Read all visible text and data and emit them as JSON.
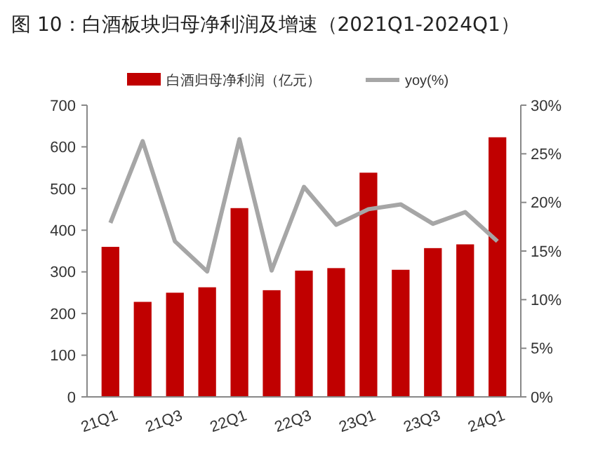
{
  "chart_data": {
    "type": "bar",
    "title": "图 10：白酒板块归母净利润及增速（2021Q1-2024Q1）",
    "categories": [
      "21Q1",
      null,
      "21Q3",
      null,
      "22Q1",
      null,
      "22Q3",
      null,
      "23Q1",
      null,
      "23Q3",
      null,
      "24Q1"
    ],
    "series": [
      {
        "name": "白酒归母净利润（亿元）",
        "color": "#c00000",
        "values": [
          360,
          228,
          250,
          263,
          453,
          256,
          303,
          309,
          538,
          305,
          357,
          366,
          623
        ]
      },
      {
        "name": "yoy(%)",
        "type": "line",
        "axis": "y2",
        "color": "#a6a6a6",
        "values": [
          17.9,
          26.3,
          16.0,
          12.9,
          26.5,
          13.0,
          21.6,
          17.7,
          19.3,
          19.8,
          17.8,
          19.0,
          16.0
        ]
      }
    ],
    "ylim": [
      0,
      700
    ],
    "yticks": [
      0,
      100,
      200,
      300,
      400,
      500,
      600,
      700
    ],
    "y2lim": [
      0,
      30
    ],
    "y2ticks": [
      {
        "value": 0,
        "label": "0%"
      },
      {
        "value": 5,
        "label": "5%"
      },
      {
        "value": 10,
        "label": "10%"
      },
      {
        "value": 15,
        "label": "15%"
      },
      {
        "value": 20,
        "label": "20%"
      },
      {
        "value": 25,
        "label": "25%"
      },
      {
        "value": 30,
        "label": "30%"
      }
    ],
    "legend": "top",
    "grid": false,
    "marker": "none",
    "line_style": "solid"
  }
}
